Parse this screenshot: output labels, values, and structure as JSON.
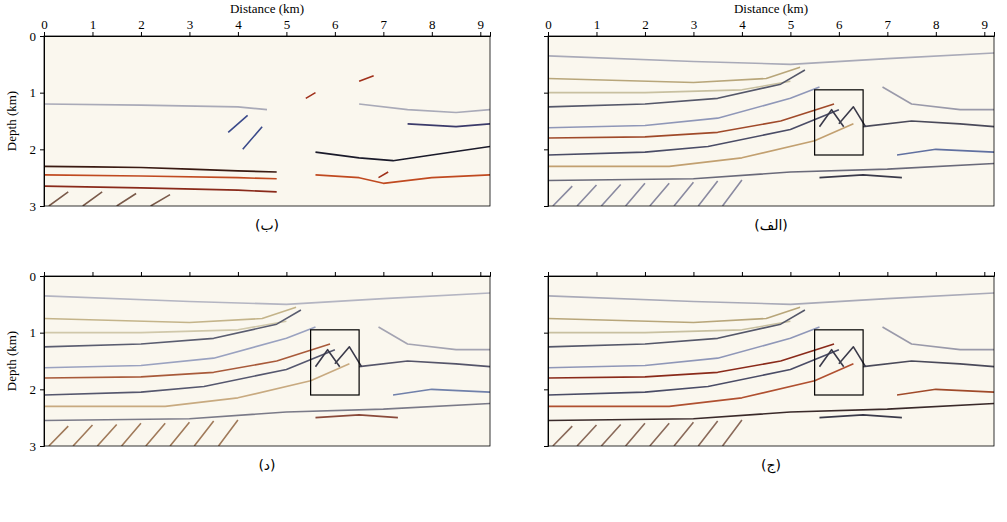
{
  "chart_data": [
    {
      "type": "line",
      "title": "(ب)",
      "xlabel": "Distance (km)",
      "ylabel": "Depth (km)",
      "xlim": [
        0,
        9.2
      ],
      "ylim": [
        0,
        3
      ],
      "xticks": [
        0,
        1,
        2,
        3,
        4,
        5,
        6,
        7,
        8,
        9
      ],
      "yticks": [
        0,
        1,
        2,
        3
      ],
      "tick_labels": true,
      "series": [
        {
          "color": "#a9aab8",
          "x": [
            0,
            2,
            4,
            4.6
          ],
          "values": [
            1.2,
            1.22,
            1.25,
            1.3
          ]
        },
        {
          "color": "#3a1a12",
          "x": [
            0,
            1,
            2,
            3,
            4,
            4.8
          ],
          "values": [
            2.3,
            2.31,
            2.32,
            2.35,
            2.38,
            2.4
          ]
        },
        {
          "color": "#c04a20",
          "x": [
            0,
            2,
            4,
            4.8
          ],
          "values": [
            2.45,
            2.47,
            2.5,
            2.52
          ]
        },
        {
          "color": "#8a2a1a",
          "x": [
            0,
            2,
            4,
            4.8
          ],
          "values": [
            2.65,
            2.68,
            2.72,
            2.75
          ]
        },
        {
          "color": "#1a1a2a",
          "x": [
            5.6,
            6.5,
            7.2,
            8,
            9.2
          ],
          "values": [
            2.05,
            2.15,
            2.2,
            2.1,
            1.95
          ]
        },
        {
          "color": "#c04a20",
          "x": [
            5.6,
            6.5,
            7,
            8,
            9.2
          ],
          "values": [
            2.45,
            2.5,
            2.6,
            2.5,
            2.45
          ]
        },
        {
          "color": "#3a4a8a",
          "x": [
            3.8,
            4.2,
            null,
            4.1,
            4.5
          ],
          "values": [
            1.7,
            1.4,
            null,
            2.0,
            1.6
          ]
        },
        {
          "color": "#a0301a",
          "x": [
            5.4,
            5.6,
            null,
            6.5,
            6.8,
            null,
            6.9,
            7.1
          ],
          "values": [
            1.1,
            1.0,
            null,
            0.8,
            0.7,
            null,
            2.5,
            2.4
          ]
        },
        {
          "color": "#a9aab8",
          "x": [
            6.5,
            7.5,
            8.5,
            9.2
          ],
          "values": [
            1.2,
            1.3,
            1.35,
            1.3
          ]
        },
        {
          "color": "#3a3a6a",
          "x": [
            7.5,
            8.5,
            9.2
          ],
          "values": [
            1.55,
            1.6,
            1.55
          ]
        },
        {
          "color": "#7a5a4a",
          "x": [
            0.1,
            0.5,
            null,
            0.8,
            1.2,
            null,
            1.5,
            1.9,
            null,
            2.2,
            2.6
          ],
          "values": [
            3,
            2.75,
            null,
            3,
            2.75,
            null,
            3,
            2.78,
            null,
            3,
            2.8
          ]
        }
      ]
    },
    {
      "type": "line",
      "title": "(الف)",
      "xlabel": "Distance (km)",
      "xlim": [
        0,
        9.2
      ],
      "ylim": [
        0,
        3
      ],
      "xticks": [
        0,
        1,
        2,
        3,
        4,
        5,
        6,
        7,
        8,
        9
      ],
      "yticks": [
        0,
        1,
        2,
        3
      ],
      "tick_labels": "x",
      "box": {
        "x": [
          5.5,
          6.5
        ],
        "y": [
          0.95,
          2.1
        ]
      },
      "series": [
        {
          "color": "#a9aab8",
          "x": [
            0,
            3,
            5,
            7,
            9.2
          ],
          "values": [
            0.35,
            0.45,
            0.5,
            0.4,
            0.3
          ]
        },
        {
          "color": "#b8a67a",
          "x": [
            0,
            3,
            4.5,
            5.2
          ],
          "values": [
            0.75,
            0.82,
            0.75,
            0.55
          ]
        },
        {
          "color": "#c8c0a0",
          "x": [
            0,
            2,
            4,
            5
          ],
          "values": [
            1.0,
            1.0,
            0.95,
            0.8
          ]
        },
        {
          "color": "#55586a",
          "x": [
            0,
            2,
            3.5,
            4.8,
            5.3
          ],
          "values": [
            1.25,
            1.2,
            1.1,
            0.85,
            0.6
          ]
        },
        {
          "color": "#8f97b8",
          "x": [
            0,
            2,
            3.5,
            5,
            5.6
          ],
          "values": [
            1.62,
            1.58,
            1.45,
            1.1,
            0.9
          ]
        },
        {
          "color": "#a04a2a",
          "x": [
            0,
            2,
            3.5,
            4.8,
            5.9
          ],
          "values": [
            1.8,
            1.78,
            1.7,
            1.5,
            1.2
          ]
        },
        {
          "color": "#4a4c66",
          "x": [
            0,
            2,
            3.3,
            5,
            6
          ],
          "values": [
            2.1,
            2.05,
            1.95,
            1.65,
            1.3
          ]
        },
        {
          "color": "#c2a070",
          "x": [
            0,
            2.5,
            4,
            5.5,
            6.3
          ],
          "values": [
            2.3,
            2.3,
            2.15,
            1.85,
            1.55
          ]
        },
        {
          "color": "#6a6a7a",
          "x": [
            0,
            3,
            5,
            7,
            9.2
          ],
          "values": [
            2.55,
            2.52,
            2.4,
            2.35,
            2.25
          ]
        },
        {
          "color": "#9a9aaa",
          "x": [
            6.9,
            7.5,
            8.5,
            9.2
          ],
          "values": [
            0.9,
            1.2,
            1.3,
            1.3
          ]
        },
        {
          "color": "#4a4a5a",
          "x": [
            6.5,
            7.5,
            8.5,
            9.2
          ],
          "values": [
            1.6,
            1.5,
            1.55,
            1.6
          ]
        },
        {
          "color": "#6070a0",
          "x": [
            7.2,
            8,
            9.2
          ],
          "values": [
            2.1,
            2.0,
            2.05
          ]
        },
        {
          "color": "#3a3a4a",
          "x": [
            5.6,
            6.5,
            7.3
          ],
          "values": [
            2.5,
            2.45,
            2.5
          ]
        },
        {
          "color": "#3a3a4a",
          "x": [
            5.6,
            5.85,
            6.1,
            null,
            6.0,
            6.3,
            6.55
          ],
          "values": [
            1.6,
            1.3,
            1.6,
            null,
            1.55,
            1.25,
            1.6
          ]
        },
        {
          "color": "#8a8aa0",
          "x": [
            0.1,
            0.5,
            null,
            0.6,
            1.0,
            null,
            1.1,
            1.5,
            null,
            1.6,
            2.0,
            null,
            2.1,
            2.5,
            null,
            2.6,
            3.0,
            null,
            3.1,
            3.5,
            null,
            3.6,
            4.0
          ],
          "values": [
            3,
            2.65,
            null,
            3,
            2.63,
            null,
            3,
            2.62,
            null,
            3,
            2.6,
            null,
            3,
            2.6,
            null,
            3,
            2.58,
            null,
            3,
            2.56,
            null,
            3,
            2.54
          ]
        }
      ]
    },
    {
      "type": "line",
      "title": "(د)",
      "ylabel": "Depth (km)",
      "xlim": [
        0,
        9.2
      ],
      "ylim": [
        0,
        3
      ],
      "xticks": [
        0,
        1,
        2,
        3,
        4,
        5,
        6,
        7,
        8,
        9
      ],
      "yticks": [
        0,
        1,
        2,
        3
      ],
      "tick_labels": "y",
      "box": {
        "x": [
          5.5,
          6.5
        ],
        "y": [
          0.95,
          2.1
        ]
      },
      "series": [
        {
          "color": "#b4b5c2",
          "x": [
            0,
            3,
            5,
            7,
            9.2
          ],
          "values": [
            0.35,
            0.45,
            0.5,
            0.4,
            0.3
          ]
        },
        {
          "color": "#c4b48a",
          "x": [
            0,
            3,
            4.5,
            5.2
          ],
          "values": [
            0.75,
            0.82,
            0.75,
            0.55
          ]
        },
        {
          "color": "#d0c8aa",
          "x": [
            0,
            2,
            4,
            5
          ],
          "values": [
            1.0,
            1.0,
            0.95,
            0.8
          ]
        },
        {
          "color": "#5a5d70",
          "x": [
            0,
            2,
            3.5,
            4.8,
            5.3
          ],
          "values": [
            1.25,
            1.2,
            1.1,
            0.85,
            0.6
          ]
        },
        {
          "color": "#9aa2c0",
          "x": [
            0,
            2,
            3.5,
            5,
            5.6
          ],
          "values": [
            1.62,
            1.58,
            1.45,
            1.1,
            0.9
          ]
        },
        {
          "color": "#a85a3a",
          "x": [
            0,
            2,
            3.5,
            4.8,
            5.9
          ],
          "values": [
            1.8,
            1.78,
            1.7,
            1.5,
            1.2
          ]
        },
        {
          "color": "#55576e",
          "x": [
            0,
            2,
            3.3,
            5,
            6
          ],
          "values": [
            2.1,
            2.05,
            1.95,
            1.65,
            1.3
          ]
        },
        {
          "color": "#c8aa80",
          "x": [
            0,
            2.5,
            4,
            5.5,
            6.3
          ],
          "values": [
            2.3,
            2.3,
            2.15,
            1.85,
            1.55
          ]
        },
        {
          "color": "#7a7a88",
          "x": [
            0,
            3,
            5,
            7,
            9.2
          ],
          "values": [
            2.55,
            2.52,
            2.4,
            2.35,
            2.25
          ]
        },
        {
          "color": "#a4a4b2",
          "x": [
            6.9,
            7.5,
            8.5,
            9.2
          ],
          "values": [
            0.9,
            1.2,
            1.3,
            1.3
          ]
        },
        {
          "color": "#55556a",
          "x": [
            6.5,
            7.5,
            8.5,
            9.2
          ],
          "values": [
            1.6,
            1.5,
            1.55,
            1.6
          ]
        },
        {
          "color": "#7080aa",
          "x": [
            7.2,
            8,
            9.2
          ],
          "values": [
            2.1,
            2.0,
            2.05
          ]
        },
        {
          "color": "#8a4a3a",
          "x": [
            5.6,
            6.5,
            7.3
          ],
          "values": [
            2.5,
            2.45,
            2.5
          ]
        },
        {
          "color": "#3a3a4a",
          "x": [
            5.6,
            5.85,
            6.1,
            null,
            6.0,
            6.3,
            6.55
          ],
          "values": [
            1.6,
            1.3,
            1.6,
            null,
            1.55,
            1.25,
            1.6
          ]
        },
        {
          "color": "#a07a5a",
          "x": [
            0.1,
            0.5,
            null,
            0.6,
            1.0,
            null,
            1.1,
            1.5,
            null,
            1.6,
            2.0,
            null,
            2.1,
            2.5,
            null,
            2.6,
            3.0,
            null,
            3.1,
            3.5,
            null,
            3.6,
            4.0
          ],
          "values": [
            3,
            2.65,
            null,
            3,
            2.63,
            null,
            3,
            2.62,
            null,
            3,
            2.6,
            null,
            3,
            2.6,
            null,
            3,
            2.58,
            null,
            3,
            2.56,
            null,
            3,
            2.54
          ]
        }
      ]
    },
    {
      "type": "line",
      "title": "(ج)",
      "xlim": [
        0,
        9.2
      ],
      "ylim": [
        0,
        3
      ],
      "xticks": [
        0,
        1,
        2,
        3,
        4,
        5,
        6,
        7,
        8,
        9
      ],
      "yticks": [
        0,
        1,
        2,
        3
      ],
      "tick_labels": false,
      "box": {
        "x": [
          5.5,
          6.5
        ],
        "y": [
          0.95,
          2.1
        ]
      },
      "series": [
        {
          "color": "#a9aab8",
          "x": [
            0,
            3,
            5,
            7,
            9.2
          ],
          "values": [
            0.35,
            0.45,
            0.5,
            0.4,
            0.3
          ]
        },
        {
          "color": "#b8a67a",
          "x": [
            0,
            3,
            4.5,
            5.2
          ],
          "values": [
            0.75,
            0.82,
            0.75,
            0.55
          ]
        },
        {
          "color": "#c8c0a0",
          "x": [
            0,
            2,
            4,
            5
          ],
          "values": [
            1.0,
            1.0,
            0.95,
            0.8
          ]
        },
        {
          "color": "#55586a",
          "x": [
            0,
            2,
            3.5,
            4.8,
            5.3
          ],
          "values": [
            1.25,
            1.2,
            1.1,
            0.85,
            0.6
          ]
        },
        {
          "color": "#8f97b8",
          "x": [
            0,
            2,
            3.5,
            5,
            5.6
          ],
          "values": [
            1.62,
            1.58,
            1.45,
            1.1,
            0.9
          ]
        },
        {
          "color": "#8a2a1a",
          "x": [
            0,
            2,
            3.5,
            4.8,
            5.9
          ],
          "values": [
            1.8,
            1.78,
            1.7,
            1.5,
            1.2
          ]
        },
        {
          "color": "#4a4c66",
          "x": [
            0,
            2,
            3.3,
            5,
            6
          ],
          "values": [
            2.1,
            2.05,
            1.95,
            1.65,
            1.3
          ]
        },
        {
          "color": "#b05030",
          "x": [
            0,
            2.5,
            4,
            5.5,
            6.3
          ],
          "values": [
            2.3,
            2.3,
            2.15,
            1.85,
            1.55
          ]
        },
        {
          "color": "#3a2a2a",
          "x": [
            0,
            3,
            5,
            7,
            9.2
          ],
          "values": [
            2.55,
            2.52,
            2.4,
            2.35,
            2.25
          ]
        },
        {
          "color": "#9a9aaa",
          "x": [
            6.9,
            7.5,
            8.5,
            9.2
          ],
          "values": [
            0.9,
            1.2,
            1.3,
            1.3
          ]
        },
        {
          "color": "#4a4a5a",
          "x": [
            6.5,
            7.5,
            8.5,
            9.2
          ],
          "values": [
            1.6,
            1.5,
            1.55,
            1.6
          ]
        },
        {
          "color": "#a04a2a",
          "x": [
            7.2,
            8,
            9.2
          ],
          "values": [
            2.1,
            2.0,
            2.05
          ]
        },
        {
          "color": "#3a3a4a",
          "x": [
            5.6,
            6.5,
            7.3
          ],
          "values": [
            2.5,
            2.45,
            2.5
          ]
        },
        {
          "color": "#3a3a4a",
          "x": [
            5.6,
            5.85,
            6.1,
            null,
            6.0,
            6.3,
            6.55
          ],
          "values": [
            1.6,
            1.3,
            1.6,
            null,
            1.55,
            1.25,
            1.6
          ]
        },
        {
          "color": "#8a6a5a",
          "x": [
            0.1,
            0.5,
            null,
            0.6,
            1.0,
            null,
            1.1,
            1.5,
            null,
            1.6,
            2.0,
            null,
            2.1,
            2.5,
            null,
            2.6,
            3.0,
            null,
            3.1,
            3.5,
            null,
            3.6,
            4.0
          ],
          "values": [
            3,
            2.65,
            null,
            3,
            2.63,
            null,
            3,
            2.62,
            null,
            3,
            2.6,
            null,
            3,
            2.6,
            null,
            3,
            2.58,
            null,
            3,
            2.56,
            null,
            3,
            2.54
          ]
        }
      ]
    }
  ]
}
